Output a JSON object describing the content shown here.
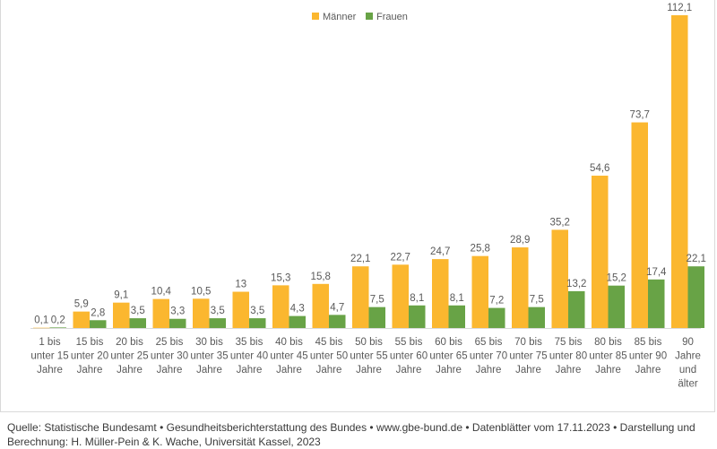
{
  "chart_data": {
    "type": "bar",
    "title": "",
    "xlabel": "",
    "ylabel": "",
    "ylim": [
      0,
      112.1
    ],
    "grid": false,
    "legend_position": "top-center",
    "categories": [
      [
        "1  bis",
        "unter 15",
        "Jahre"
      ],
      [
        "15 bis",
        "unter 20",
        "Jahre"
      ],
      [
        "20 bis",
        "unter 25",
        "Jahre"
      ],
      [
        "25 bis",
        "unter 30",
        "Jahre"
      ],
      [
        "30 bis",
        "unter 35",
        "Jahre"
      ],
      [
        "35 bis",
        "unter 40",
        "Jahre"
      ],
      [
        "40 bis",
        "unter 45",
        "Jahre"
      ],
      [
        "45 bis",
        "unter 50",
        "Jahre"
      ],
      [
        "50 bis",
        "unter 55",
        "Jahre"
      ],
      [
        "55 bis",
        "unter 60",
        "Jahre"
      ],
      [
        "60 bis",
        "unter 65",
        "Jahre"
      ],
      [
        "65 bis",
        "unter 70",
        "Jahre"
      ],
      [
        "70 bis",
        "unter 75",
        "Jahre"
      ],
      [
        "75 bis",
        "unter 80",
        "Jahre"
      ],
      [
        "80 bis",
        "unter 85",
        "Jahre"
      ],
      [
        "85 bis",
        "unter 90",
        "Jahre"
      ],
      [
        "90",
        "Jahre",
        "und",
        "älter"
      ]
    ],
    "series": [
      {
        "name": "Männer",
        "color": "#FBB72F",
        "values": [
          0.1,
          5.9,
          9.1,
          10.4,
          10.5,
          13,
          15.3,
          15.8,
          22.1,
          22.7,
          24.7,
          25.8,
          28.9,
          35.2,
          54.6,
          73.7,
          112.1
        ],
        "labels": [
          "0,1",
          "5,9",
          "9,1",
          "10,4",
          "10,5",
          "13",
          "15,3",
          "15,8",
          "22,1",
          "22,7",
          "24,7",
          "25,8",
          "28,9",
          "35,2",
          "54,6",
          "73,7",
          "112,1"
        ]
      },
      {
        "name": "Frauen",
        "color": "#68A346",
        "values": [
          0.2,
          2.8,
          3.5,
          3.3,
          3.5,
          3.5,
          4.3,
          4.7,
          7.5,
          8.1,
          8.1,
          7.2,
          7.5,
          13.2,
          15.2,
          17.4,
          22.1
        ],
        "labels": [
          "0,2",
          "2,8",
          "3,5",
          "3,3",
          "3,5",
          "3,5",
          "4,3",
          "4,7",
          "7,5",
          "8,1",
          "8,1",
          "7,2",
          "7,5",
          "13,2",
          "15,2",
          "17,4",
          "22,1"
        ]
      }
    ]
  },
  "footer": {
    "text": "Quelle: Statistische Bundesamt • Gesundheitsberichterstattung des Bundes • www.gbe-bund.de • Datenblätter vom 17.11.2023 • Darstellung und Berechnung: H. Müller-Pein & K. Wache, Universität Kassel, 2023"
  }
}
